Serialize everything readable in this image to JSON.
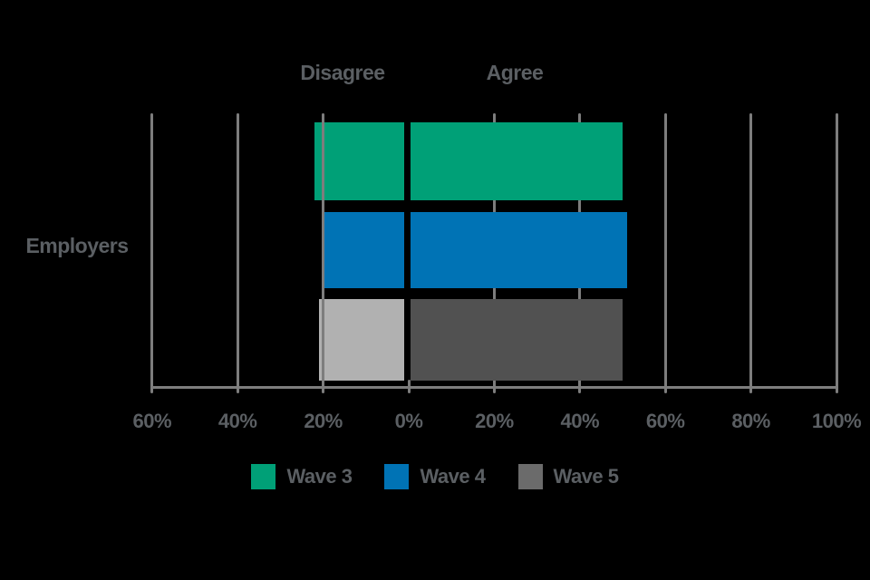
{
  "chart_data": {
    "type": "bar",
    "subtype": "diverging-horizontal-likert",
    "title": "",
    "category_label": "Employers",
    "side_labels": {
      "left": "Disagree",
      "right": "Agree"
    },
    "series": [
      {
        "name": "Wave 3",
        "disagree": 22,
        "agree": 50,
        "agree_color": "#00a077",
        "disagree_color": "#00a077",
        "legend_color": "#00a077"
      },
      {
        "name": "Wave 4",
        "disagree": 20,
        "agree": 51,
        "agree_color": "#0073b5",
        "disagree_color": "#0073b5",
        "legend_color": "#0073b5"
      },
      {
        "name": "Wave 5",
        "disagree": 21,
        "agree": 50,
        "agree_color": "#515151",
        "disagree_color": "#b1b1b1",
        "legend_color": "#6b6b6b"
      }
    ],
    "x_axis": {
      "tick_labels": [
        "60%",
        "40%",
        "20%",
        "0%",
        "20%",
        "40%",
        "60%",
        "80%",
        "100%"
      ],
      "tick_values": [
        -60,
        -40,
        -20,
        0,
        20,
        40,
        60,
        80,
        100
      ],
      "range": [
        -60,
        100
      ],
      "unit": "%"
    },
    "grid": true,
    "legend": {
      "position": "bottom",
      "entries": [
        "Wave 3",
        "Wave 4",
        "Wave 5"
      ]
    }
  },
  "colors": {
    "background": "#000000",
    "text": "#5b5f63",
    "gridline": "#7d7d7d",
    "zero_divider": "#000000"
  }
}
